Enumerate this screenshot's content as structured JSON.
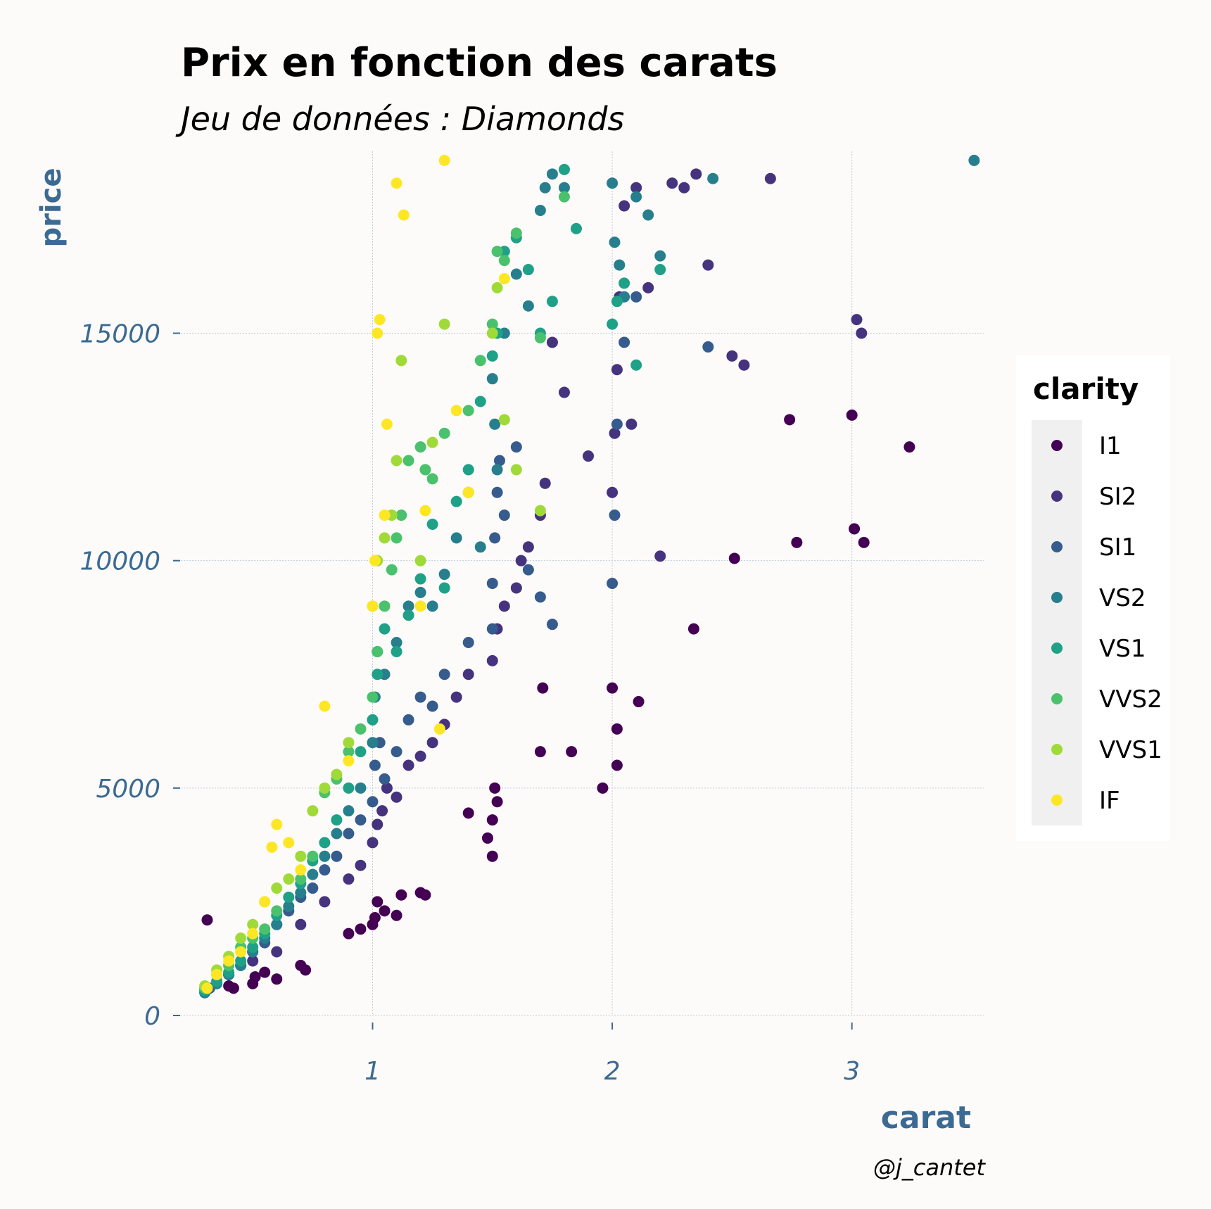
{
  "chart_data": {
    "type": "scatter",
    "title": "Prix en fonction des carats",
    "subtitle": "Jeu de données : Diamonds",
    "xlabel": "carat",
    "ylabel": "price",
    "caption": "@j_cantet",
    "xlim": [
      0.2,
      3.55
    ],
    "ylim": [
      0,
      19000
    ],
    "x_ticks": [
      {
        "value": 1,
        "label": "1"
      },
      {
        "value": 2,
        "label": "2"
      },
      {
        "value": 3,
        "label": "3"
      }
    ],
    "y_ticks": [
      {
        "value": 0,
        "label": "0"
      },
      {
        "value": 5000,
        "label": "5000"
      },
      {
        "value": 10000,
        "label": "10000"
      },
      {
        "value": 15000,
        "label": "15000"
      }
    ],
    "grid": true,
    "legend": {
      "title": "clarity",
      "placement": "right",
      "entries": [
        {
          "label": "I1",
          "color": "#440154"
        },
        {
          "label": "SI2",
          "color": "#46337e"
        },
        {
          "label": "SI1",
          "color": "#365c8d"
        },
        {
          "label": "VS2",
          "color": "#277f8e"
        },
        {
          "label": "VS1",
          "color": "#1fa187"
        },
        {
          "label": "VVS2",
          "color": "#4ac16d"
        },
        {
          "label": "VVS1",
          "color": "#a0da39"
        },
        {
          "label": "IF",
          "color": "#fde725"
        }
      ]
    },
    "series": [
      {
        "name": "I1",
        "x": [
          0.31,
          0.4,
          0.42,
          0.5,
          0.51,
          0.55,
          0.6,
          0.7,
          0.72,
          0.9,
          0.95,
          1.0,
          1.01,
          1.02,
          1.05,
          1.1,
          1.12,
          1.2,
          1.22,
          1.4,
          1.48,
          1.5,
          1.5,
          1.51,
          1.52,
          1.7,
          1.71,
          1.83,
          1.96,
          2.0,
          2.02,
          2.02,
          2.11,
          2.34,
          2.51,
          2.74,
          2.77,
          3.0,
          3.01,
          3.05,
          3.24
        ],
        "y": [
          2100,
          650,
          600,
          700,
          850,
          950,
          800,
          1100,
          1000,
          1800,
          1900,
          2000,
          2150,
          2500,
          2300,
          2200,
          2650,
          2700,
          2650,
          4450,
          3900,
          3500,
          4300,
          5000,
          4700,
          5800,
          7200,
          5800,
          5000,
          7200,
          5500,
          6300,
          6900,
          8500,
          10050,
          13100,
          10400,
          13200,
          10700,
          10400,
          12500
        ]
      },
      {
        "name": "SI2",
        "x": [
          0.4,
          0.5,
          0.6,
          0.7,
          0.8,
          0.9,
          0.95,
          1.0,
          1.02,
          1.04,
          1.06,
          1.1,
          1.15,
          1.2,
          1.25,
          1.3,
          1.35,
          1.4,
          1.5,
          1.52,
          1.55,
          1.6,
          1.62,
          1.65,
          1.7,
          1.72,
          1.75,
          1.8,
          1.9,
          2.0,
          2.01,
          2.02,
          2.03,
          2.05,
          2.08,
          2.1,
          2.15,
          2.2,
          2.25,
          2.3,
          2.35,
          2.4,
          2.5,
          2.55,
          2.66,
          3.02,
          3.04
        ],
        "y": [
          900,
          1200,
          1400,
          2000,
          2500,
          3000,
          3300,
          3800,
          4200,
          4500,
          5000,
          4800,
          5500,
          5700,
          6000,
          6400,
          7000,
          7500,
          7800,
          8500,
          9000,
          9400,
          10000,
          10300,
          11000,
          11700,
          14800,
          13700,
          12300,
          11500,
          12800,
          14200,
          15800,
          17800,
          13000,
          18200,
          16000,
          10100,
          18300,
          18200,
          18500,
          16500,
          14500,
          14300,
          18400,
          15300,
          15000
        ]
      },
      {
        "name": "SI1",
        "x": [
          0.32,
          0.4,
          0.45,
          0.5,
          0.55,
          0.6,
          0.65,
          0.7,
          0.75,
          0.8,
          0.85,
          0.9,
          0.95,
          1.0,
          1.01,
          1.03,
          1.05,
          1.1,
          1.15,
          1.2,
          1.25,
          1.3,
          1.4,
          1.5,
          1.5,
          1.51,
          1.52,
          1.53,
          1.55,
          1.6,
          1.65,
          1.7,
          1.75,
          2.0,
          2.01,
          2.02,
          2.05,
          2.1,
          2.4
        ],
        "y": [
          600,
          900,
          1100,
          1400,
          1600,
          2000,
          2300,
          2600,
          2800,
          3200,
          3500,
          4000,
          4300,
          4700,
          5500,
          6000,
          5200,
          5800,
          6500,
          7000,
          6800,
          7500,
          8200,
          8500,
          9500,
          10500,
          11500,
          12200,
          11000,
          12500,
          9800,
          9200,
          8600,
          9500,
          11000,
          13000,
          14800,
          15800,
          14700
        ]
      },
      {
        "name": "VS2",
        "x": [
          0.3,
          0.35,
          0.4,
          0.45,
          0.5,
          0.55,
          0.6,
          0.65,
          0.7,
          0.75,
          0.8,
          0.85,
          0.9,
          0.95,
          1.0,
          1.01,
          1.02,
          1.05,
          1.1,
          1.15,
          1.2,
          1.25,
          1.3,
          1.35,
          1.4,
          1.45,
          1.5,
          1.51,
          1.52,
          1.55,
          1.6,
          1.65,
          1.7,
          1.72,
          1.75,
          1.8,
          2.0,
          2.01,
          2.03,
          2.05,
          2.1,
          2.15,
          2.2,
          2.42,
          3.51
        ],
        "y": [
          500,
          700,
          900,
          1100,
          1400,
          1700,
          2000,
          2400,
          2700,
          3100,
          3500,
          4000,
          4500,
          5000,
          6000,
          7000,
          8000,
          7500,
          8200,
          9000,
          9300,
          9000,
          9700,
          10500,
          11500,
          10300,
          14000,
          13000,
          12000,
          15000,
          16300,
          15600,
          17700,
          18200,
          18500,
          18200,
          18300,
          17000,
          16500,
          15800,
          18000,
          17600,
          16700,
          18400,
          18800
        ]
      },
      {
        "name": "VS1",
        "x": [
          0.3,
          0.35,
          0.4,
          0.45,
          0.5,
          0.55,
          0.6,
          0.65,
          0.7,
          0.75,
          0.8,
          0.85,
          0.9,
          0.95,
          1.0,
          1.02,
          1.05,
          1.1,
          1.15,
          1.2,
          1.25,
          1.3,
          1.35,
          1.4,
          1.45,
          1.5,
          1.52,
          1.55,
          1.6,
          1.65,
          1.7,
          1.75,
          1.8,
          1.85,
          2.0,
          2.02,
          2.05,
          2.1,
          2.2
        ],
        "y": [
          550,
          750,
          950,
          1200,
          1500,
          1800,
          2200,
          2600,
          2900,
          3400,
          3800,
          4300,
          5000,
          5800,
          6500,
          7500,
          8500,
          8000,
          8800,
          9600,
          10800,
          9400,
          11300,
          12000,
          13500,
          14500,
          15000,
          16800,
          17100,
          16400,
          15000,
          15700,
          18600,
          17300,
          15200,
          15700,
          16100,
          14300,
          16400
        ]
      },
      {
        "name": "VVS2",
        "x": [
          0.3,
          0.35,
          0.4,
          0.45,
          0.5,
          0.55,
          0.6,
          0.7,
          0.75,
          0.8,
          0.85,
          0.9,
          0.95,
          1.0,
          1.02,
          1.05,
          1.08,
          1.1,
          1.12,
          1.15,
          1.2,
          1.22,
          1.25,
          1.3,
          1.4,
          1.45,
          1.5,
          1.52,
          1.55,
          1.6,
          1.7,
          1.8
        ],
        "y": [
          600,
          900,
          1100,
          1500,
          1700,
          1900,
          2300,
          3000,
          3500,
          4900,
          5200,
          5800,
          6300,
          7000,
          8000,
          9000,
          9800,
          10500,
          11000,
          12200,
          12500,
          12000,
          11800,
          12800,
          13300,
          14400,
          15200,
          16800,
          16600,
          17200,
          14900,
          18000
        ]
      },
      {
        "name": "VVS1",
        "x": [
          0.3,
          0.35,
          0.4,
          0.45,
          0.5,
          0.55,
          0.6,
          0.65,
          0.7,
          0.75,
          0.8,
          0.85,
          0.9,
          1.0,
          1.02,
          1.05,
          1.08,
          1.1,
          1.12,
          1.2,
          1.25,
          1.3,
          1.5,
          1.52,
          1.55,
          1.6,
          1.7
        ],
        "y": [
          650,
          1000,
          1300,
          1700,
          2000,
          2500,
          2800,
          3000,
          3500,
          4500,
          5000,
          5300,
          6000,
          9000,
          10000,
          10500,
          11000,
          12200,
          14400,
          10000,
          12600,
          15200,
          15000,
          16000,
          13100,
          12000,
          11100
        ]
      },
      {
        "name": "IF",
        "x": [
          0.31,
          0.35,
          0.4,
          0.45,
          0.5,
          0.55,
          0.58,
          0.6,
          0.65,
          0.7,
          0.8,
          0.9,
          1.0,
          1.01,
          1.02,
          1.03,
          1.05,
          1.06,
          1.1,
          1.13,
          1.2,
          1.22,
          1.28,
          1.3,
          1.35,
          1.4,
          1.55
        ],
        "y": [
          600,
          900,
          1200,
          1400,
          1800,
          2500,
          3700,
          4200,
          3800,
          3200,
          6800,
          5600,
          9000,
          10000,
          15000,
          15300,
          11000,
          13000,
          18300,
          17600,
          9000,
          11100,
          6300,
          18800,
          13300,
          11500,
          16200
        ]
      }
    ]
  }
}
